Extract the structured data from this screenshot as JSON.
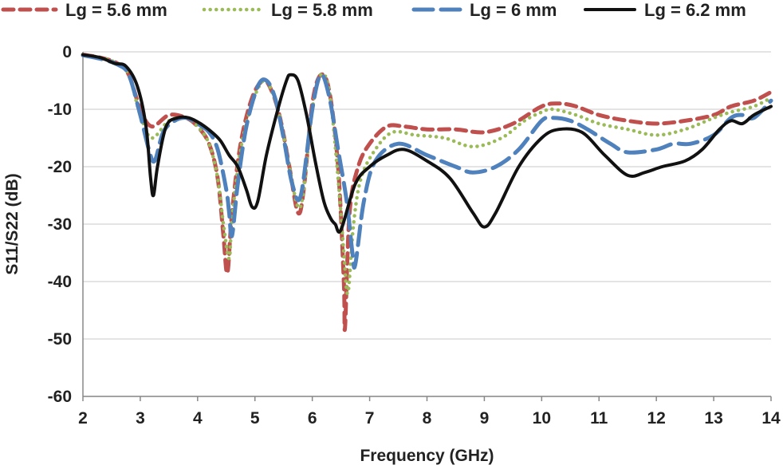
{
  "chart_data": {
    "type": "line",
    "title": "",
    "xlabel": "Frequency (GHz)",
    "ylabel": "S11/S22 (dB)",
    "xlim": [
      2,
      14
    ],
    "ylim": [
      -60,
      0
    ],
    "grid": true,
    "legend_position": "top",
    "x_ticks": [
      {
        "value": 2,
        "label": "2"
      },
      {
        "value": 3,
        "label": "3"
      },
      {
        "value": 4,
        "label": "4"
      },
      {
        "value": 5,
        "label": "5"
      },
      {
        "value": 6,
        "label": "6"
      },
      {
        "value": 7,
        "label": "7"
      },
      {
        "value": 8,
        "label": "8"
      },
      {
        "value": 9,
        "label": "9"
      },
      {
        "value": 10,
        "label": "10"
      },
      {
        "value": 11,
        "label": "11"
      },
      {
        "value": 12,
        "label": "12"
      },
      {
        "value": 13,
        "label": "13"
      },
      {
        "value": 14,
        "label": "14"
      }
    ],
    "y_ticks": [
      {
        "value": 0,
        "label": "0"
      },
      {
        "value": -10,
        "label": "-10"
      },
      {
        "value": -20,
        "label": "-20"
      },
      {
        "value": -30,
        "label": "-30"
      },
      {
        "value": -40,
        "label": "-40"
      },
      {
        "value": -50,
        "label": "-50"
      },
      {
        "value": -60,
        "label": "-60"
      }
    ],
    "series": [
      {
        "name": "Lg = 5.6 mm",
        "color": "#c0504d",
        "style": "dashed",
        "points": [
          [
            2,
            -0.5
          ],
          [
            2.3,
            -1
          ],
          [
            2.6,
            -2
          ],
          [
            2.8,
            -4
          ],
          [
            3.0,
            -10
          ],
          [
            3.2,
            -13
          ],
          [
            3.5,
            -11
          ],
          [
            3.8,
            -11.5
          ],
          [
            4.0,
            -13
          ],
          [
            4.2,
            -16
          ],
          [
            4.35,
            -22
          ],
          [
            4.45,
            -32
          ],
          [
            4.52,
            -38.5
          ],
          [
            4.6,
            -28
          ],
          [
            4.75,
            -16
          ],
          [
            4.95,
            -8
          ],
          [
            5.15,
            -5
          ],
          [
            5.3,
            -7
          ],
          [
            5.45,
            -12
          ],
          [
            5.6,
            -20
          ],
          [
            5.75,
            -28
          ],
          [
            5.85,
            -24
          ],
          [
            6.0,
            -9
          ],
          [
            6.15,
            -4
          ],
          [
            6.3,
            -7
          ],
          [
            6.45,
            -20
          ],
          [
            6.55,
            -40
          ],
          [
            6.57,
            -48
          ],
          [
            6.65,
            -28
          ],
          [
            6.8,
            -20
          ],
          [
            7.0,
            -16
          ],
          [
            7.3,
            -13
          ],
          [
            7.6,
            -13
          ],
          [
            8.0,
            -13.5
          ],
          [
            8.5,
            -13.5
          ],
          [
            9.0,
            -14
          ],
          [
            9.5,
            -12.5
          ],
          [
            10.0,
            -9.5
          ],
          [
            10.3,
            -9
          ],
          [
            10.6,
            -9.5
          ],
          [
            11.0,
            -11
          ],
          [
            11.5,
            -12
          ],
          [
            12.0,
            -12.5
          ],
          [
            12.5,
            -12
          ],
          [
            13.0,
            -11
          ],
          [
            13.3,
            -9.5
          ],
          [
            13.7,
            -8.5
          ],
          [
            14.0,
            -7
          ]
        ]
      },
      {
        "name": "Lg = 5.8 mm",
        "color": "#9bbb59",
        "style": "dotted",
        "points": [
          [
            2,
            -0.5
          ],
          [
            2.3,
            -1
          ],
          [
            2.6,
            -2
          ],
          [
            2.8,
            -4
          ],
          [
            3.0,
            -11
          ],
          [
            3.2,
            -15
          ],
          [
            3.5,
            -12
          ],
          [
            3.8,
            -11.5
          ],
          [
            4.0,
            -13
          ],
          [
            4.2,
            -16
          ],
          [
            4.35,
            -22
          ],
          [
            4.45,
            -30
          ],
          [
            4.55,
            -36
          ],
          [
            4.6,
            -29
          ],
          [
            4.75,
            -17
          ],
          [
            4.95,
            -9
          ],
          [
            5.15,
            -5
          ],
          [
            5.3,
            -7
          ],
          [
            5.45,
            -12
          ],
          [
            5.6,
            -20
          ],
          [
            5.75,
            -27
          ],
          [
            5.85,
            -24
          ],
          [
            6.0,
            -10
          ],
          [
            6.15,
            -4
          ],
          [
            6.3,
            -7
          ],
          [
            6.45,
            -22
          ],
          [
            6.55,
            -35
          ],
          [
            6.62,
            -42
          ],
          [
            6.72,
            -30
          ],
          [
            6.85,
            -22
          ],
          [
            7.1,
            -17
          ],
          [
            7.4,
            -14
          ],
          [
            7.8,
            -14.5
          ],
          [
            8.3,
            -15
          ],
          [
            8.8,
            -16.5
          ],
          [
            9.3,
            -15
          ],
          [
            9.7,
            -12
          ],
          [
            10.0,
            -10.5
          ],
          [
            10.2,
            -10
          ],
          [
            10.6,
            -11
          ],
          [
            11.0,
            -12.5
          ],
          [
            11.5,
            -13.5
          ],
          [
            12.0,
            -14.5
          ],
          [
            12.5,
            -13.5
          ],
          [
            13.0,
            -11.5
          ],
          [
            13.3,
            -10.5
          ],
          [
            13.7,
            -9.5
          ],
          [
            14.0,
            -8
          ]
        ]
      },
      {
        "name": "Lg = 6 mm",
        "color": "#4f81bd",
        "style": "long-dash",
        "points": [
          [
            2,
            -0.6
          ],
          [
            2.3,
            -1.2
          ],
          [
            2.6,
            -2.2
          ],
          [
            2.8,
            -4
          ],
          [
            3.0,
            -11
          ],
          [
            3.15,
            -17
          ],
          [
            3.25,
            -19
          ],
          [
            3.4,
            -14
          ],
          [
            3.6,
            -12
          ],
          [
            3.8,
            -11.5
          ],
          [
            4.0,
            -12.5
          ],
          [
            4.2,
            -14
          ],
          [
            4.35,
            -17
          ],
          [
            4.5,
            -24
          ],
          [
            4.55,
            -28
          ],
          [
            4.6,
            -32
          ],
          [
            4.7,
            -23
          ],
          [
            4.85,
            -13
          ],
          [
            5.05,
            -6
          ],
          [
            5.2,
            -5
          ],
          [
            5.35,
            -8
          ],
          [
            5.5,
            -15
          ],
          [
            5.65,
            -23
          ],
          [
            5.8,
            -25
          ],
          [
            6.0,
            -10
          ],
          [
            6.15,
            -4
          ],
          [
            6.3,
            -8
          ],
          [
            6.45,
            -17
          ],
          [
            6.6,
            -26
          ],
          [
            6.7,
            -35
          ],
          [
            6.75,
            -37
          ],
          [
            6.9,
            -26
          ],
          [
            7.1,
            -19
          ],
          [
            7.5,
            -16
          ],
          [
            8.0,
            -18
          ],
          [
            8.5,
            -20
          ],
          [
            8.8,
            -21
          ],
          [
            9.2,
            -20
          ],
          [
            9.6,
            -17
          ],
          [
            10.0,
            -12
          ],
          [
            10.2,
            -11.5
          ],
          [
            10.5,
            -12
          ],
          [
            10.8,
            -13.5
          ],
          [
            11.2,
            -16
          ],
          [
            11.5,
            -17.5
          ],
          [
            12.0,
            -17
          ],
          [
            12.3,
            -16
          ],
          [
            12.6,
            -16
          ],
          [
            13.0,
            -14.5
          ],
          [
            13.3,
            -11.5
          ],
          [
            13.5,
            -11
          ],
          [
            13.7,
            -11.5
          ],
          [
            14.0,
            -8.5
          ]
        ]
      },
      {
        "name": "Lg = 6.2 mm",
        "color": "#111111",
        "style": "solid",
        "points": [
          [
            2,
            -0.5
          ],
          [
            2.3,
            -1
          ],
          [
            2.55,
            -2
          ],
          [
            2.75,
            -2.5
          ],
          [
            2.95,
            -6
          ],
          [
            3.1,
            -13
          ],
          [
            3.18,
            -22
          ],
          [
            3.23,
            -25
          ],
          [
            3.3,
            -20
          ],
          [
            3.45,
            -13
          ],
          [
            3.65,
            -11.5
          ],
          [
            3.85,
            -11.5
          ],
          [
            4.05,
            -12.5
          ],
          [
            4.25,
            -14
          ],
          [
            4.4,
            -15.5
          ],
          [
            4.55,
            -18
          ],
          [
            4.7,
            -20
          ],
          [
            4.85,
            -24
          ],
          [
            4.95,
            -27
          ],
          [
            5.05,
            -26
          ],
          [
            5.2,
            -18
          ],
          [
            5.4,
            -10
          ],
          [
            5.55,
            -5
          ],
          [
            5.62,
            -4
          ],
          [
            5.75,
            -5
          ],
          [
            5.9,
            -11
          ],
          [
            6.05,
            -19
          ],
          [
            6.2,
            -26
          ],
          [
            6.32,
            -29
          ],
          [
            6.4,
            -30
          ],
          [
            6.5,
            -31
          ],
          [
            6.75,
            -23
          ],
          [
            7.0,
            -20
          ],
          [
            7.3,
            -18
          ],
          [
            7.6,
            -17
          ],
          [
            8.0,
            -19
          ],
          [
            8.4,
            -22
          ],
          [
            8.8,
            -28
          ],
          [
            9.0,
            -30.5
          ],
          [
            9.2,
            -28
          ],
          [
            9.6,
            -20
          ],
          [
            10.0,
            -15
          ],
          [
            10.3,
            -13.5
          ],
          [
            10.7,
            -14
          ],
          [
            11.1,
            -18
          ],
          [
            11.5,
            -21.5
          ],
          [
            11.8,
            -21
          ],
          [
            12.1,
            -20
          ],
          [
            12.5,
            -19
          ],
          [
            12.8,
            -17
          ],
          [
            13.1,
            -13.5
          ],
          [
            13.3,
            -12
          ],
          [
            13.5,
            -12.5
          ],
          [
            13.7,
            -11
          ],
          [
            14.0,
            -9.5
          ]
        ]
      }
    ]
  }
}
